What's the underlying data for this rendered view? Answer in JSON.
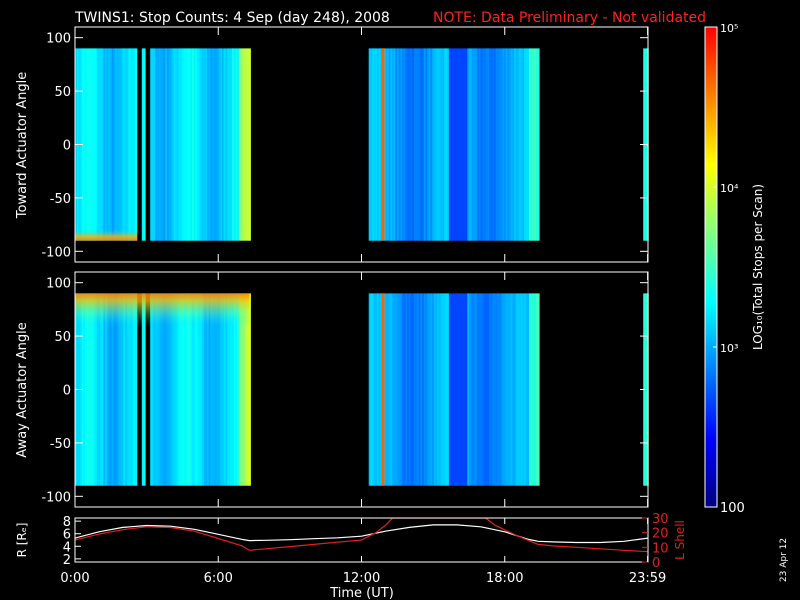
{
  "title": "TWINS1: Stop Counts:  4 Sep (day 248), 2008",
  "note": "NOTE: Data Preliminary - Not validated",
  "date_stamp": "23 Apr 12",
  "colors": {
    "note": "#ff2020",
    "axis": "#ffffff",
    "r_line": "#ffffff",
    "lshell_line": "#e02020",
    "background": "#000000"
  },
  "chart_data": [
    {
      "type": "heatmap",
      "panel": "top",
      "ylabel": "Toward Actuator Angle",
      "ylim": [
        -110,
        110
      ],
      "yticks": [
        100,
        50,
        0,
        -50,
        -100
      ],
      "xlim": [
        0,
        24
      ],
      "data_ylim": [
        -90,
        90
      ],
      "data_segments": [
        [
          0,
          7.3
        ],
        [
          12.3,
          19.4
        ],
        [
          23.8,
          24
        ]
      ],
      "gaps": [
        [
          2.55,
          2.75
        ],
        [
          2.9,
          3.1
        ]
      ],
      "bright_lines": [
        12.9
      ],
      "bottom_band": {
        "angle_range": [
          -90,
          -75
        ],
        "t_range": [
          0,
          2.6
        ],
        "level": "high"
      }
    },
    {
      "type": "heatmap",
      "panel": "middle",
      "ylabel": "Away Actuator Angle",
      "ylim": [
        -110,
        110
      ],
      "yticks": [
        100,
        50,
        0,
        -50,
        -100
      ],
      "xlim": [
        0,
        24
      ],
      "data_ylim": [
        -90,
        90
      ],
      "data_segments": [
        [
          0,
          7.3
        ],
        [
          12.3,
          19.4
        ],
        [
          23.8,
          24
        ]
      ],
      "gaps": [
        [
          2.55,
          2.75
        ],
        [
          2.9,
          3.1
        ]
      ],
      "bright_lines": [
        12.9
      ],
      "top_band": {
        "angle_range": [
          70,
          90
        ],
        "t_range": [
          0,
          7.3
        ],
        "level": "high"
      }
    },
    {
      "type": "line",
      "panel": "bottom",
      "ylabel_left": "R [Rₑ]",
      "ylabel_right": "L Shell",
      "xlabel": "Time (UT)",
      "xlim": [
        0,
        24
      ],
      "xticks": [
        0,
        6,
        12,
        18,
        23.983
      ],
      "xtick_labels": [
        "0:00",
        "6:00",
        "12:00",
        "18:00",
        "23:59"
      ],
      "ylim_left": [
        1.5,
        8.5
      ],
      "yticks_left": [
        2,
        4,
        6,
        8
      ],
      "ylim_right": [
        0,
        30
      ],
      "yticks_right": [
        0,
        10,
        20,
        30
      ],
      "series": [
        {
          "name": "R",
          "axis": "left",
          "x": [
            0,
            1,
            2,
            3,
            4,
            5,
            6,
            7,
            7.3,
            8,
            9,
            10,
            11,
            12,
            13,
            14,
            15,
            16,
            17,
            18,
            19,
            19.4,
            20,
            21,
            22,
            23,
            24
          ],
          "y": [
            5.3,
            6.3,
            7.0,
            7.3,
            7.2,
            6.7,
            5.9,
            5.1,
            4.9,
            4.95,
            5.05,
            5.2,
            5.35,
            5.6,
            6.4,
            7.0,
            7.4,
            7.4,
            7.1,
            6.3,
            5.1,
            4.8,
            4.7,
            4.6,
            4.6,
            4.8,
            5.3
          ]
        },
        {
          "name": "L Shell",
          "axis": "right",
          "x": [
            0,
            1,
            2,
            3,
            4,
            5,
            6,
            7,
            7.3,
            8,
            9,
            10,
            11,
            12,
            12.6,
            13,
            13.3,
            17.2,
            17.6,
            18.5,
            19.4,
            20,
            21,
            22,
            23,
            24
          ],
          "y": [
            15,
            19,
            22,
            24,
            23.5,
            21,
            16,
            11,
            8,
            9,
            10.5,
            12,
            13.5,
            15,
            20,
            25,
            30,
            30,
            25,
            18,
            12,
            11,
            10,
            9,
            8,
            7
          ]
        }
      ]
    }
  ],
  "colorbar": {
    "label": "LOG₁₀(Total Stops per Scan)",
    "scale": "log",
    "range": [
      100,
      100000
    ],
    "ticks": [
      {
        "value": 100000,
        "label": "10⁵"
      },
      {
        "value": 10000,
        "label": "10⁴"
      },
      {
        "value": 1000,
        "label": "10³"
      },
      {
        "value": 100,
        "label": "100"
      }
    ],
    "colors": [
      "#000080",
      "#0000ff",
      "#0080ff",
      "#00ffff",
      "#80ff80",
      "#ffff00",
      "#ff8000",
      "#ff0000"
    ]
  }
}
